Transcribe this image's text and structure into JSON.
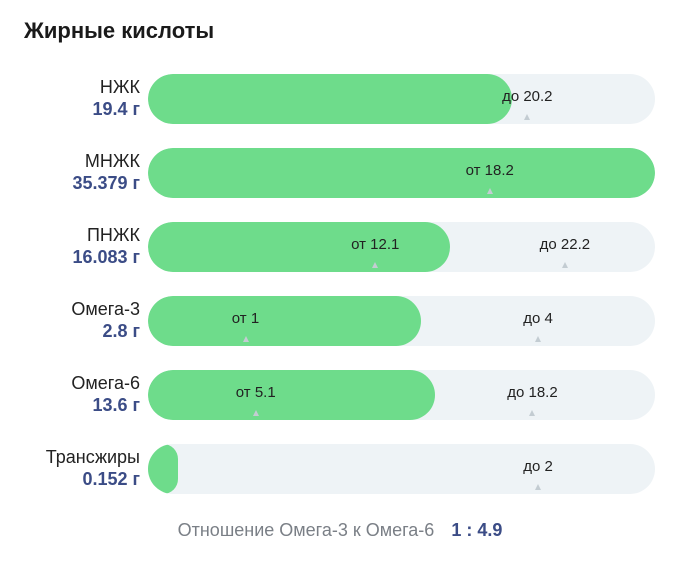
{
  "chart_data": {
    "type": "bar",
    "title": "Жирные кислоты",
    "scale_max": 27.0,
    "rows": [
      {
        "name": "НЖК",
        "value_label": "19.4 г",
        "value": 19.4,
        "markers": [
          {
            "text": "до 20.2",
            "value": 20.2
          }
        ]
      },
      {
        "name": "МНЖК",
        "value_label": "35.379 г",
        "value": 35.379,
        "markers": [
          {
            "text": "от 18.2",
            "value": 18.2
          }
        ]
      },
      {
        "name": "ПНЖК",
        "value_label": "16.083 г",
        "value": 16.083,
        "markers": [
          {
            "text": "от 12.1",
            "value": 12.1
          },
          {
            "text": "до 22.2",
            "value": 22.2
          }
        ]
      },
      {
        "name": "Омега-3",
        "value_label": "2.8 г",
        "value": 2.8,
        "scale_max": 5.2,
        "markers": [
          {
            "text": "от 1",
            "value": 1
          },
          {
            "text": "до 4",
            "value": 4
          }
        ]
      },
      {
        "name": "Омега-6",
        "value_label": "13.6 г",
        "value": 13.6,
        "scale_max": 24.0,
        "markers": [
          {
            "text": "от 5.1",
            "value": 5.1
          },
          {
            "text": "до 18.2",
            "value": 18.2
          }
        ]
      },
      {
        "name": "Трансжиры",
        "value_label": "0.152 г",
        "value": 0.152,
        "scale_max": 2.6,
        "markers": [
          {
            "text": "до 2",
            "value": 2
          }
        ]
      }
    ],
    "footer_label": "Отношение Омега-3 к Омега-6",
    "footer_ratio": "1 : 4.9"
  },
  "colors": {
    "fill": "#6edc8b",
    "track": "#eef3f6",
    "value_text": "#3b4c86"
  }
}
